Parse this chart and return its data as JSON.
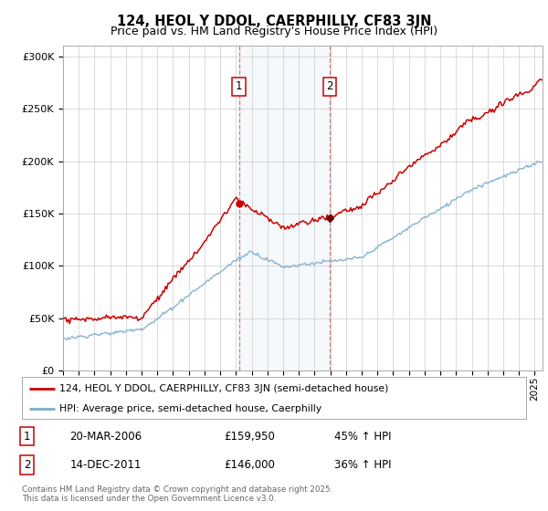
{
  "title": "124, HEOL Y DDOL, CAERPHILLY, CF83 3JN",
  "subtitle": "Price paid vs. HM Land Registry's House Price Index (HPI)",
  "legend_line1": "124, HEOL Y DDOL, CAERPHILLY, CF83 3JN (semi-detached house)",
  "legend_line2": "HPI: Average price, semi-detached house, Caerphilly",
  "red_color": "#cc0000",
  "blue_color": "#7aabcc",
  "shade_color": "#ddeeff",
  "marker1_year": 2006.21,
  "marker2_year": 2011.95,
  "marker1_price": 159950,
  "marker2_price": 146000,
  "marker1_date_str": "20-MAR-2006",
  "marker2_date_str": "14-DEC-2011",
  "marker1_price_str": "£159,950",
  "marker2_price_str": "£146,000",
  "marker1_hpi": "45% ↑ HPI",
  "marker2_hpi": "36% ↑ HPI",
  "ylabel_ticks": [
    "£0",
    "£50K",
    "£100K",
    "£150K",
    "£200K",
    "£250K",
    "£300K"
  ],
  "ytick_vals": [
    0,
    50000,
    100000,
    150000,
    200000,
    250000,
    300000
  ],
  "ylim": [
    0,
    310000
  ],
  "xlim_start": 1995,
  "xlim_end": 2025.5,
  "footnote": "Contains HM Land Registry data © Crown copyright and database right 2025.\nThis data is licensed under the Open Government Licence v3.0.",
  "background_color": "#ffffff",
  "grid_color": "#cccccc"
}
